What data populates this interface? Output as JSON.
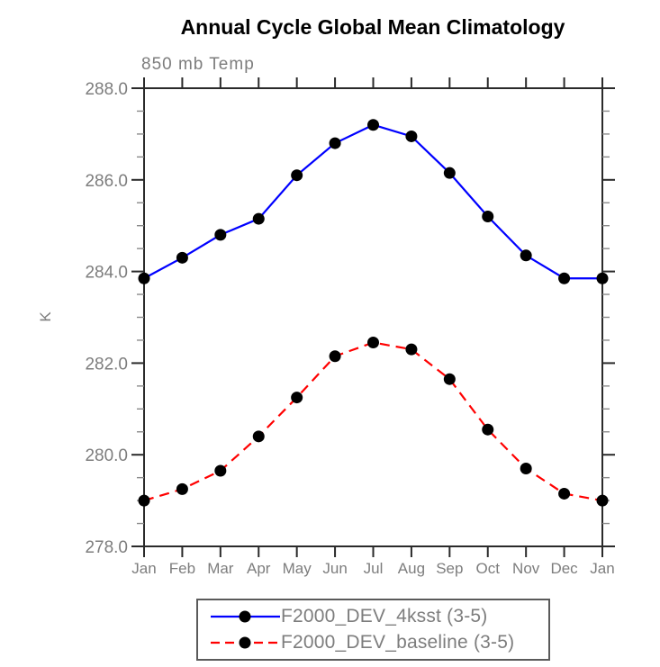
{
  "title": "Annual Cycle Global Mean Climatology",
  "subtitle": "850 mb Temp",
  "ylabel": "K",
  "colors": {
    "title_text": "#000000",
    "label_gray": "#7d7d7d",
    "axis": "#2a2a2a",
    "minor_tick": "#8a8a8a",
    "series1_blue": "#0000ff",
    "series2_red": "#ff0000",
    "marker_black": "#000000",
    "background": "#ffffff"
  },
  "chart_data": {
    "type": "line",
    "title": "Annual Cycle Global Mean Climatology",
    "subtitle": "850 mb Temp",
    "xlabel": "",
    "ylabel": "K",
    "categories": [
      "Jan",
      "Feb",
      "Mar",
      "Apr",
      "May",
      "Jun",
      "Jul",
      "Aug",
      "Sep",
      "Oct",
      "Nov",
      "Dec",
      "Jan"
    ],
    "series": [
      {
        "name": "F2000_DEV_4ksst (3-5)",
        "color": "#0000ff",
        "line_style": "solid",
        "marker": "black-dot",
        "values": [
          283.85,
          284.3,
          284.8,
          285.15,
          286.1,
          286.8,
          287.2,
          286.95,
          286.15,
          285.2,
          284.35,
          283.85,
          283.85
        ]
      },
      {
        "name": "F2000_DEV_baseline (3-5)",
        "color": "#ff0000",
        "line_style": "dashed",
        "marker": "black-dot",
        "values": [
          279.0,
          279.25,
          279.65,
          280.4,
          281.25,
          282.15,
          282.45,
          282.3,
          281.65,
          280.55,
          279.7,
          279.15,
          279.0
        ]
      }
    ],
    "ylim": [
      278.0,
      288.0
    ],
    "ytick_interval": 2.0,
    "yminor_interval": 0.5,
    "ytick_labels": [
      "288.0",
      "286.0",
      "284.0",
      "282.0",
      "280.0",
      "278.0"
    ],
    "grid": false,
    "legend_position": "bottom-center-boxed"
  },
  "legend": {
    "entries": [
      {
        "label": "F2000_DEV_4ksst (3-5)",
        "style": "blue-solid-line-black-dot"
      },
      {
        "label": "F2000_DEV_baseline (3-5)",
        "style": "red-dashed-line-black-dot"
      }
    ]
  }
}
